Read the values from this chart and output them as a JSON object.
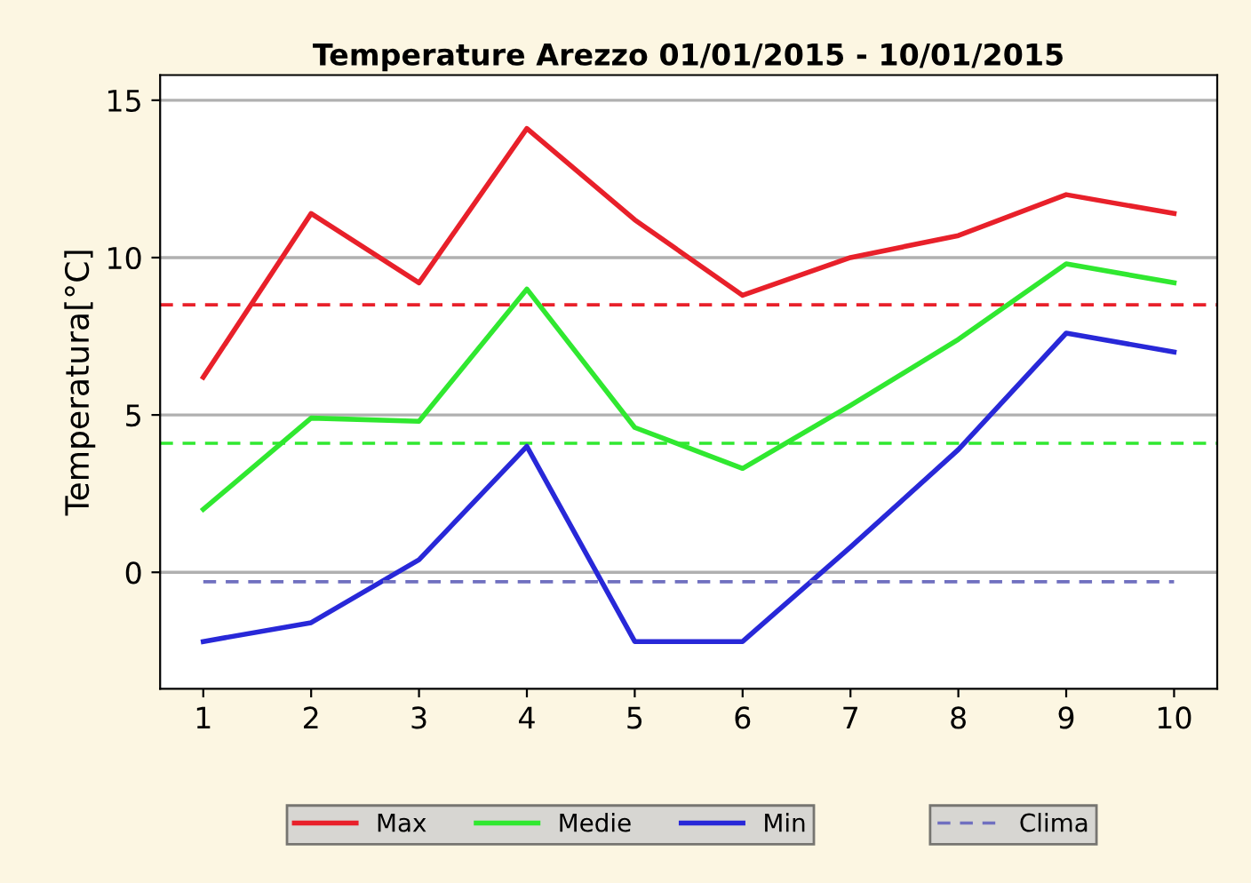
{
  "chart_data": {
    "type": "line",
    "title": "Temperature Arezzo 01/01/2015 - 10/01/2015",
    "ylabel": "Temperatura[°C]",
    "x": [
      1,
      2,
      3,
      4,
      5,
      6,
      7,
      8,
      9,
      10
    ],
    "xlim": [
      0.6,
      10.4
    ],
    "xticks": [
      1,
      2,
      3,
      4,
      5,
      6,
      7,
      8,
      9,
      10
    ],
    "ylim": [
      -3.7,
      15.8
    ],
    "yticks": [
      0,
      5,
      10,
      15
    ],
    "grid": "y",
    "legend": "bottom",
    "line_style": "solid",
    "marker": "none",
    "series": [
      {
        "name": "Max",
        "color": "#e8202a",
        "values": [
          6.2,
          11.4,
          9.2,
          14.1,
          11.2,
          8.8,
          10.0,
          10.7,
          12.0,
          11.4
        ]
      },
      {
        "name": "Medie",
        "color": "#30e830",
        "values": [
          2.0,
          4.9,
          4.8,
          9.0,
          4.6,
          3.3,
          5.3,
          7.4,
          9.8,
          9.2
        ]
      },
      {
        "name": "Min",
        "color": "#2828d8",
        "values": [
          -2.2,
          -1.6,
          0.4,
          4.0,
          -2.2,
          -2.2,
          0.8,
          3.9,
          7.6,
          7.0
        ]
      },
      {
        "name": "Clima",
        "color": "#7070c0",
        "line_style": "dashed",
        "values": [
          -0.3,
          -0.3,
          -0.3,
          -0.3,
          -0.3,
          -0.3,
          -0.3,
          -0.3,
          -0.3,
          -0.3
        ]
      }
    ],
    "ref_lines": [
      {
        "axis": "y",
        "value": 8.5,
        "color": "#e8202a",
        "line_style": "dashed"
      },
      {
        "axis": "y",
        "value": 4.1,
        "color": "#30e830",
        "line_style": "dashed"
      }
    ]
  }
}
